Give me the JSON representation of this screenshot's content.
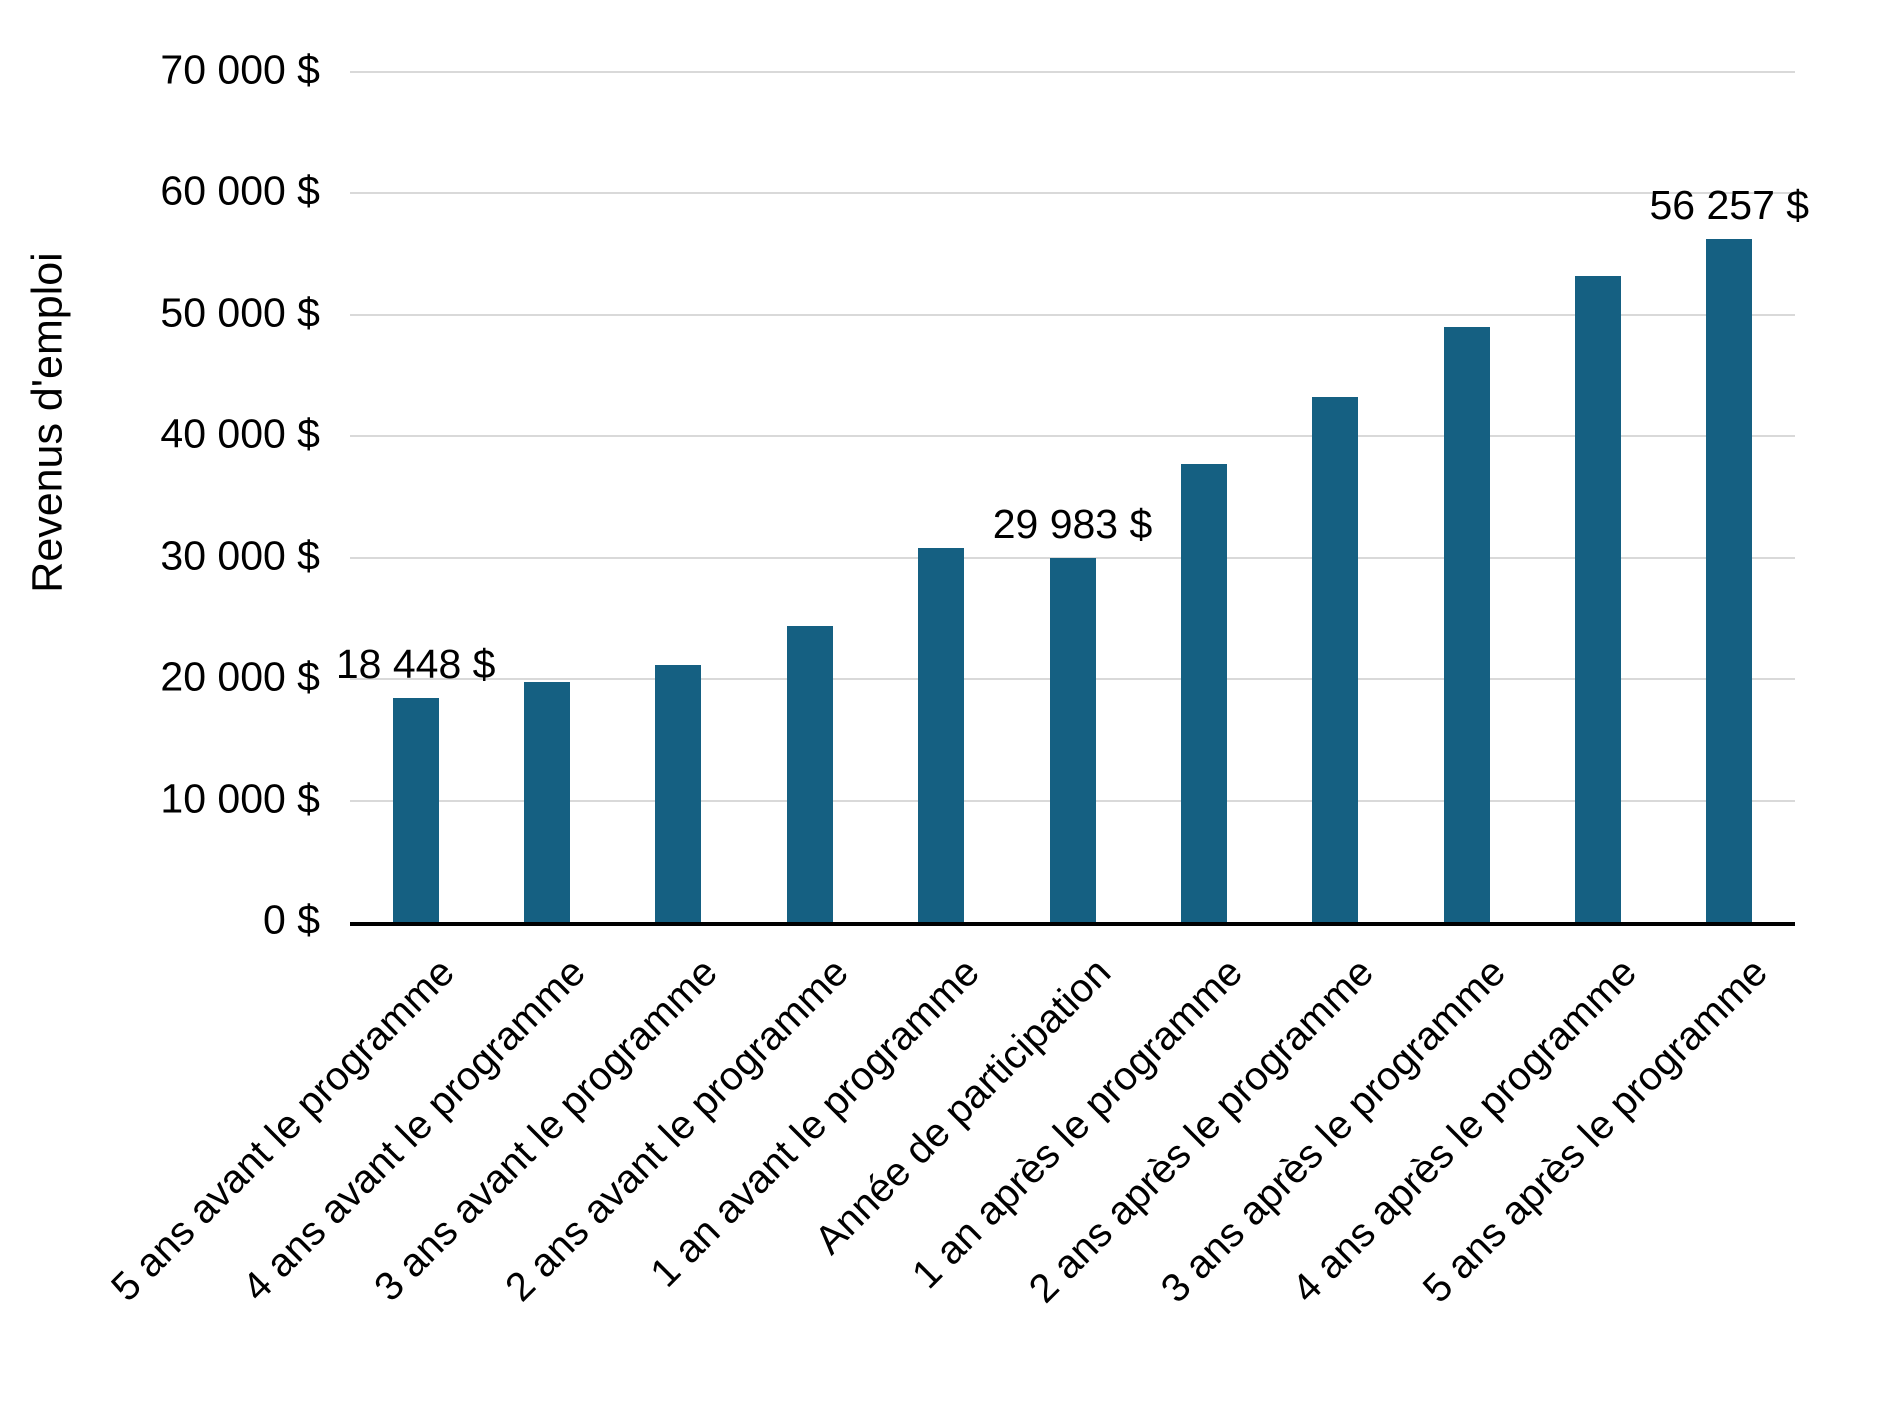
{
  "chart_data": {
    "type": "bar",
    "title": "",
    "ylabel": "Revenus d'emploi",
    "xlabel": "",
    "categories": [
      "5 ans avant le programme",
      "4 ans avant le programme",
      "3 ans avant le programme",
      "2 ans avant le programme",
      "1 an avant le programme",
      "Année de participation",
      "1 an après le programme",
      "2 ans après le programme",
      "3 ans après le programme",
      "4 ans après le programme",
      "5 ans après le programme"
    ],
    "values": [
      18448,
      19800,
      21200,
      24400,
      30800,
      29983,
      37700,
      43200,
      49000,
      53200,
      56257
    ],
    "data_labels": {
      "0": "18 448 $",
      "5": "29 983 $",
      "10": "56 257 $"
    },
    "ylim": [
      0,
      70000
    ],
    "ytick_step": 10000,
    "ytick_labels": [
      "0 $",
      "10 000 $",
      "20 000 $",
      "30 000 $",
      "40 000 $",
      "50 000 $",
      "60 000 $",
      "70 000 $"
    ],
    "grid": true,
    "legend": "none",
    "bar_color": "#156082",
    "grid_color": "#d9d9d9",
    "axis_color": "#000000",
    "text_color": "#000000",
    "background_color": "#ffffff"
  }
}
